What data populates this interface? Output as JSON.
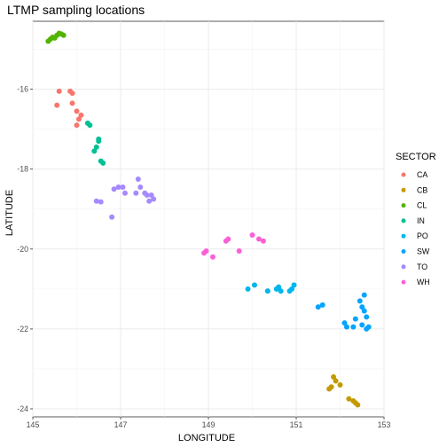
{
  "chart_data": {
    "type": "scatter",
    "title": "LTMP sampling locations",
    "xlabel": "LONGITUDE",
    "ylabel": "LATITUDE",
    "xlim": [
      145,
      153
    ],
    "ylim": [
      -24.2,
      -14.3
    ],
    "xticks": [
      145,
      147,
      149,
      151,
      153
    ],
    "xtick_labels": [
      "145",
      "147",
      "149",
      "151",
      "153"
    ],
    "yticks": [
      -16,
      -18,
      -20,
      -22,
      -24
    ],
    "ytick_labels": [
      "-16",
      "-18",
      "-20",
      "-22",
      "-24"
    ],
    "grid": true,
    "legend": {
      "title": "SECTOR",
      "position": "right"
    },
    "series": [
      {
        "name": "CA",
        "color": "#F8766D",
        "points": [
          [
            145.6,
            -16.05
          ],
          [
            145.85,
            -16.05
          ],
          [
            145.9,
            -16.1
          ],
          [
            145.55,
            -16.4
          ],
          [
            145.9,
            -16.35
          ],
          [
            146.0,
            -16.55
          ],
          [
            146.1,
            -16.65
          ],
          [
            146.05,
            -16.75
          ],
          [
            146.0,
            -16.9
          ]
        ]
      },
      {
        "name": "CB",
        "color": "#C49A00",
        "points": [
          [
            151.75,
            -23.5
          ],
          [
            151.8,
            -23.45
          ],
          [
            151.85,
            -23.2
          ],
          [
            151.9,
            -23.3
          ],
          [
            152.0,
            -23.4
          ],
          [
            152.2,
            -23.75
          ],
          [
            152.3,
            -23.8
          ],
          [
            152.35,
            -23.85
          ],
          [
            152.4,
            -23.9
          ]
        ]
      },
      {
        "name": "CL",
        "color": "#53B400",
        "points": [
          [
            145.35,
            -14.8
          ],
          [
            145.4,
            -14.75
          ],
          [
            145.45,
            -14.7
          ],
          [
            145.5,
            -14.72
          ],
          [
            145.55,
            -14.65
          ],
          [
            145.6,
            -14.6
          ],
          [
            145.65,
            -14.62
          ],
          [
            145.7,
            -14.65
          ]
        ]
      },
      {
        "name": "IN",
        "color": "#00C094",
        "points": [
          [
            146.25,
            -16.85
          ],
          [
            146.3,
            -16.9
          ],
          [
            146.5,
            -17.25
          ],
          [
            146.5,
            -17.3
          ],
          [
            146.45,
            -17.45
          ],
          [
            146.4,
            -17.55
          ],
          [
            146.55,
            -17.8
          ],
          [
            146.6,
            -17.85
          ]
        ]
      },
      {
        "name": "PO",
        "color": "#00B6EB",
        "points": [
          [
            149.9,
            -21.0
          ],
          [
            150.05,
            -20.9
          ],
          [
            150.35,
            -21.05
          ],
          [
            150.55,
            -21.0
          ],
          [
            150.6,
            -20.95
          ],
          [
            150.65,
            -21.05
          ],
          [
            150.85,
            -21.05
          ],
          [
            150.9,
            -21.0
          ],
          [
            150.95,
            -20.9
          ]
        ]
      },
      {
        "name": "SW",
        "color": "#06A4FF",
        "points": [
          [
            151.5,
            -21.45
          ],
          [
            151.6,
            -21.4
          ],
          [
            152.1,
            -21.85
          ],
          [
            152.15,
            -21.95
          ],
          [
            152.3,
            -21.95
          ],
          [
            152.45,
            -21.3
          ],
          [
            152.5,
            -21.45
          ],
          [
            152.55,
            -21.55
          ],
          [
            152.55,
            -21.15
          ],
          [
            152.6,
            -21.7
          ],
          [
            152.5,
            -21.9
          ],
          [
            152.6,
            -22.0
          ],
          [
            152.65,
            -21.95
          ],
          [
            152.35,
            -21.75
          ]
        ]
      },
      {
        "name": "TO",
        "color": "#A58AFF",
        "points": [
          [
            146.45,
            -18.8
          ],
          [
            146.55,
            -18.82
          ],
          [
            146.8,
            -19.2
          ],
          [
            146.85,
            -18.5
          ],
          [
            146.95,
            -18.45
          ],
          [
            147.05,
            -18.45
          ],
          [
            147.1,
            -18.6
          ],
          [
            147.35,
            -18.6
          ],
          [
            147.4,
            -18.25
          ],
          [
            147.45,
            -18.45
          ],
          [
            147.55,
            -18.6
          ],
          [
            147.6,
            -18.65
          ],
          [
            147.7,
            -18.65
          ],
          [
            147.75,
            -18.75
          ],
          [
            147.65,
            -18.8
          ]
        ]
      },
      {
        "name": "WH",
        "color": "#FB61D7",
        "points": [
          [
            148.9,
            -20.1
          ],
          [
            148.95,
            -20.05
          ],
          [
            149.1,
            -20.2
          ],
          [
            149.4,
            -19.8
          ],
          [
            149.45,
            -19.75
          ],
          [
            149.7,
            -20.05
          ],
          [
            150.0,
            -19.65
          ],
          [
            150.15,
            -19.75
          ],
          [
            150.25,
            -19.8
          ]
        ]
      }
    ]
  }
}
